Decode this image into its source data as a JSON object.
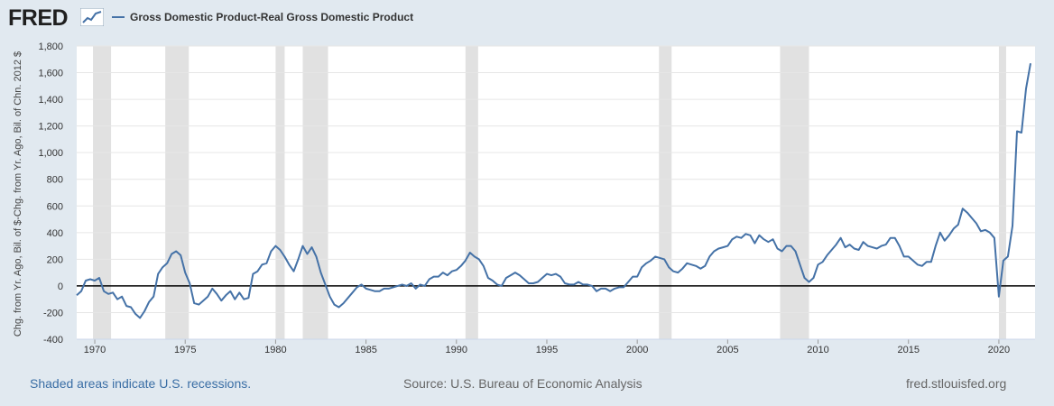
{
  "header": {
    "logo_text": "FRED",
    "legend_label": "Gross Domestic Product-Real Gross Domestic Product"
  },
  "colors": {
    "series": "#4572a7",
    "recession": "#e1e1e1",
    "background": "#e1e9f0",
    "plot": "#ffffff"
  },
  "footer": {
    "recessions_note": "Shaded areas indicate U.S. recessions.",
    "source": "Source: U.S. Bureau of Economic Analysis",
    "site": "fred.stlouisfed.org"
  },
  "chart_data": {
    "type": "line",
    "ylabel": "Chg. from Yr. Ago, Bil. of $-Chg. from Yr. Ago, Bil. of Chn. 2012 $",
    "xlim": [
      1969.0,
      2022.0
    ],
    "ylim": [
      -400,
      1800
    ],
    "y_ticks": [
      -400,
      -200,
      0,
      200,
      400,
      600,
      800,
      1000,
      1200,
      1400,
      1600,
      1800
    ],
    "y_tick_labels": [
      "-400",
      "-200",
      "0",
      "200",
      "400",
      "600",
      "800",
      "1,000",
      "1,200",
      "1,400",
      "1,600",
      "1,800"
    ],
    "x_ticks": [
      1970,
      1975,
      1980,
      1985,
      1990,
      1995,
      2000,
      2005,
      2010,
      2015,
      2020
    ],
    "x_tick_labels": [
      "1970",
      "1975",
      "1980",
      "1985",
      "1990",
      "1995",
      "2000",
      "2005",
      "2010",
      "2015",
      "2020"
    ],
    "grid": "horizontal",
    "recessions": [
      [
        1969.9,
        1970.9
      ],
      [
        1973.9,
        1975.2
      ],
      [
        1980.0,
        1980.5
      ],
      [
        1981.5,
        1982.9
      ],
      [
        1990.5,
        1991.2
      ],
      [
        2001.2,
        2001.9
      ],
      [
        2007.9,
        2009.5
      ],
      [
        2020.0,
        2020.4
      ]
    ],
    "series": [
      {
        "name": "Gross Domestic Product-Real Gross Domestic Product",
        "points": [
          [
            1969.0,
            -70
          ],
          [
            1969.25,
            -40
          ],
          [
            1969.5,
            40
          ],
          [
            1969.75,
            50
          ],
          [
            1970.0,
            40
          ],
          [
            1970.25,
            60
          ],
          [
            1970.5,
            -40
          ],
          [
            1970.75,
            -60
          ],
          [
            1971.0,
            -50
          ],
          [
            1971.25,
            -100
          ],
          [
            1971.5,
            -80
          ],
          [
            1971.75,
            -150
          ],
          [
            1972.0,
            -160
          ],
          [
            1972.25,
            -210
          ],
          [
            1972.5,
            -240
          ],
          [
            1972.75,
            -190
          ],
          [
            1973.0,
            -120
          ],
          [
            1973.25,
            -80
          ],
          [
            1973.5,
            90
          ],
          [
            1973.75,
            140
          ],
          [
            1974.0,
            170
          ],
          [
            1974.25,
            240
          ],
          [
            1974.5,
            260
          ],
          [
            1974.75,
            230
          ],
          [
            1975.0,
            100
          ],
          [
            1975.25,
            20
          ],
          [
            1975.5,
            -130
          ],
          [
            1975.75,
            -140
          ],
          [
            1976.0,
            -110
          ],
          [
            1976.25,
            -80
          ],
          [
            1976.5,
            -20
          ],
          [
            1976.75,
            -60
          ],
          [
            1977.0,
            -110
          ],
          [
            1977.25,
            -70
          ],
          [
            1977.5,
            -40
          ],
          [
            1977.75,
            -100
          ],
          [
            1978.0,
            -50
          ],
          [
            1978.25,
            -100
          ],
          [
            1978.5,
            -90
          ],
          [
            1978.75,
            90
          ],
          [
            1979.0,
            110
          ],
          [
            1979.25,
            160
          ],
          [
            1979.5,
            170
          ],
          [
            1979.75,
            260
          ],
          [
            1980.0,
            300
          ],
          [
            1980.25,
            270
          ],
          [
            1980.5,
            220
          ],
          [
            1980.75,
            160
          ],
          [
            1981.0,
            110
          ],
          [
            1981.25,
            200
          ],
          [
            1981.5,
            300
          ],
          [
            1981.75,
            240
          ],
          [
            1982.0,
            290
          ],
          [
            1982.25,
            220
          ],
          [
            1982.5,
            100
          ],
          [
            1982.75,
            10
          ],
          [
            1983.0,
            -80
          ],
          [
            1983.25,
            -140
          ],
          [
            1983.5,
            -160
          ],
          [
            1983.75,
            -130
          ],
          [
            1984.0,
            -90
          ],
          [
            1984.25,
            -50
          ],
          [
            1984.5,
            -10
          ],
          [
            1984.75,
            10
          ],
          [
            1985.0,
            -20
          ],
          [
            1985.25,
            -30
          ],
          [
            1985.5,
            -40
          ],
          [
            1985.75,
            -40
          ],
          [
            1986.0,
            -20
          ],
          [
            1986.25,
            -20
          ],
          [
            1986.5,
            -10
          ],
          [
            1986.75,
            0
          ],
          [
            1987.0,
            10
          ],
          [
            1987.25,
            0
          ],
          [
            1987.5,
            20
          ],
          [
            1987.75,
            -20
          ],
          [
            1988.0,
            10
          ],
          [
            1988.25,
            0
          ],
          [
            1988.5,
            50
          ],
          [
            1988.75,
            70
          ],
          [
            1989.0,
            70
          ],
          [
            1989.25,
            100
          ],
          [
            1989.5,
            80
          ],
          [
            1989.75,
            110
          ],
          [
            1990.0,
            120
          ],
          [
            1990.25,
            150
          ],
          [
            1990.5,
            190
          ],
          [
            1990.75,
            250
          ],
          [
            1991.0,
            220
          ],
          [
            1991.25,
            200
          ],
          [
            1991.5,
            150
          ],
          [
            1991.75,
            60
          ],
          [
            1992.0,
            40
          ],
          [
            1992.25,
            10
          ],
          [
            1992.5,
            0
          ],
          [
            1992.75,
            60
          ],
          [
            1993.0,
            80
          ],
          [
            1993.25,
            100
          ],
          [
            1993.5,
            80
          ],
          [
            1993.75,
            50
          ],
          [
            1994.0,
            20
          ],
          [
            1994.25,
            20
          ],
          [
            1994.5,
            30
          ],
          [
            1994.75,
            60
          ],
          [
            1995.0,
            90
          ],
          [
            1995.25,
            80
          ],
          [
            1995.5,
            90
          ],
          [
            1995.75,
            70
          ],
          [
            1996.0,
            20
          ],
          [
            1996.25,
            10
          ],
          [
            1996.5,
            10
          ],
          [
            1996.75,
            30
          ],
          [
            1997.0,
            10
          ],
          [
            1997.25,
            10
          ],
          [
            1997.5,
            0
          ],
          [
            1997.75,
            -40
          ],
          [
            1998.0,
            -20
          ],
          [
            1998.25,
            -20
          ],
          [
            1998.5,
            -40
          ],
          [
            1998.75,
            -20
          ],
          [
            1999.0,
            -10
          ],
          [
            1999.25,
            -10
          ],
          [
            1999.5,
            30
          ],
          [
            1999.75,
            70
          ],
          [
            2000.0,
            70
          ],
          [
            2000.25,
            140
          ],
          [
            2000.5,
            170
          ],
          [
            2000.75,
            190
          ],
          [
            2001.0,
            220
          ],
          [
            2001.25,
            210
          ],
          [
            2001.5,
            200
          ],
          [
            2001.75,
            140
          ],
          [
            2002.0,
            110
          ],
          [
            2002.25,
            100
          ],
          [
            2002.5,
            130
          ],
          [
            2002.75,
            170
          ],
          [
            2003.0,
            160
          ],
          [
            2003.25,
            150
          ],
          [
            2003.5,
            130
          ],
          [
            2003.75,
            150
          ],
          [
            2004.0,
            220
          ],
          [
            2004.25,
            260
          ],
          [
            2004.5,
            280
          ],
          [
            2004.75,
            290
          ],
          [
            2005.0,
            300
          ],
          [
            2005.25,
            350
          ],
          [
            2005.5,
            370
          ],
          [
            2005.75,
            360
          ],
          [
            2006.0,
            390
          ],
          [
            2006.25,
            380
          ],
          [
            2006.5,
            320
          ],
          [
            2006.75,
            380
          ],
          [
            2007.0,
            350
          ],
          [
            2007.25,
            330
          ],
          [
            2007.5,
            350
          ],
          [
            2007.75,
            280
          ],
          [
            2008.0,
            260
          ],
          [
            2008.25,
            300
          ],
          [
            2008.5,
            300
          ],
          [
            2008.75,
            260
          ],
          [
            2009.0,
            160
          ],
          [
            2009.25,
            60
          ],
          [
            2009.5,
            30
          ],
          [
            2009.75,
            60
          ],
          [
            2010.0,
            160
          ],
          [
            2010.25,
            180
          ],
          [
            2010.5,
            230
          ],
          [
            2010.75,
            270
          ],
          [
            2011.0,
            310
          ],
          [
            2011.25,
            360
          ],
          [
            2011.5,
            290
          ],
          [
            2011.75,
            310
          ],
          [
            2012.0,
            280
          ],
          [
            2012.25,
            270
          ],
          [
            2012.5,
            330
          ],
          [
            2012.75,
            300
          ],
          [
            2013.0,
            290
          ],
          [
            2013.25,
            280
          ],
          [
            2013.5,
            300
          ],
          [
            2013.75,
            310
          ],
          [
            2014.0,
            360
          ],
          [
            2014.25,
            360
          ],
          [
            2014.5,
            300
          ],
          [
            2014.75,
            220
          ],
          [
            2015.0,
            220
          ],
          [
            2015.25,
            190
          ],
          [
            2015.5,
            160
          ],
          [
            2015.75,
            150
          ],
          [
            2016.0,
            180
          ],
          [
            2016.25,
            180
          ],
          [
            2016.5,
            300
          ],
          [
            2016.75,
            400
          ],
          [
            2017.0,
            340
          ],
          [
            2017.25,
            380
          ],
          [
            2017.5,
            430
          ],
          [
            2017.75,
            460
          ],
          [
            2018.0,
            580
          ],
          [
            2018.25,
            550
          ],
          [
            2018.5,
            510
          ],
          [
            2018.75,
            470
          ],
          [
            2019.0,
            410
          ],
          [
            2019.25,
            420
          ],
          [
            2019.5,
            400
          ],
          [
            2019.75,
            360
          ],
          [
            2020.0,
            -80
          ],
          [
            2020.25,
            190
          ],
          [
            2020.5,
            220
          ],
          [
            2020.75,
            450
          ],
          [
            2021.0,
            1160
          ],
          [
            2021.25,
            1150
          ],
          [
            2021.5,
            1480
          ],
          [
            2021.75,
            1670
          ]
        ]
      }
    ]
  }
}
